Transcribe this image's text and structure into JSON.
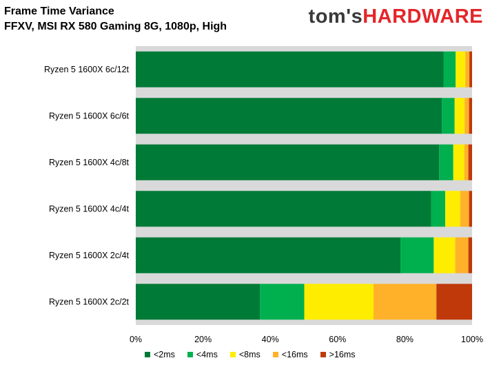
{
  "header": {
    "title": "Frame Time Variance",
    "subtitle": "FFXV, MSI RX 580 Gaming 8G, 1080p, High"
  },
  "logo": {
    "part1": "tom's",
    "part2": "HARDWARE"
  },
  "colors": {
    "<2ms": "#007a37",
    "<4ms": "#00b04f",
    "<8ms": "#ffed00",
    "<16ms": "#ffb12a",
    ">16ms": "#c0390b",
    "grid": "#d9d9d9",
    "plot_background": "#d9d9d9"
  },
  "chart_data": {
    "type": "bar",
    "orientation": "horizontal",
    "stacked": true,
    "categories": [
      "Ryzen 5 1600X 6c/12t",
      "Ryzen 5 1600X 6c/6t",
      "Ryzen 5 1600X 4c/8t",
      "Ryzen 5 1600X 4c/4t",
      "Ryzen 5 1600X 2c/4t",
      "Ryzen 5 1600X 2c/2t"
    ],
    "series": [
      {
        "name": "<2ms",
        "color": "#007a37",
        "values": [
          91.5,
          91.0,
          90.2,
          87.8,
          78.7,
          36.9
        ]
      },
      {
        "name": "<4ms",
        "color": "#00b04f",
        "values": [
          3.6,
          3.8,
          4.2,
          4.2,
          9.9,
          13.2
        ]
      },
      {
        "name": "<8ms",
        "color": "#ffed00",
        "values": [
          2.9,
          3.0,
          3.3,
          4.5,
          6.4,
          20.6
        ]
      },
      {
        "name": "<16ms",
        "color": "#ffb12a",
        "values": [
          1.2,
          1.3,
          1.2,
          2.6,
          3.9,
          18.7
        ]
      },
      {
        "name": ">16ms",
        "color": "#c0390b",
        "values": [
          0.8,
          0.9,
          1.1,
          0.9,
          1.1,
          10.6
        ]
      }
    ],
    "x_ticks": [
      "0%",
      "20%",
      "40%",
      "60%",
      "80%",
      "100%"
    ],
    "xlim": [
      0,
      100
    ],
    "grid": true,
    "legend_position": "bottom"
  }
}
